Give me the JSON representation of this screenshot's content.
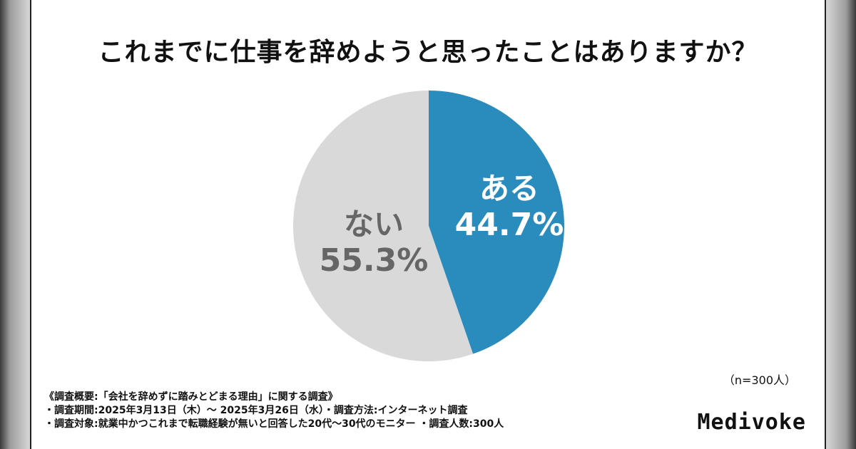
{
  "chart_data": {
    "type": "pie",
    "title": "これまでに仕事を辞めようと思ったことはありますか？",
    "slices": [
      {
        "label": "ある",
        "value": 44.7,
        "value_label": "44.7%",
        "color": "#2a8bbd",
        "text_color": "#ffffff"
      },
      {
        "label": "ない",
        "value": 55.3,
        "value_label": "55.3%",
        "color": "#d9d9d9",
        "text_color": "#666666"
      }
    ],
    "start": "12 o'clock",
    "direction": "clockwise"
  },
  "sample_note": "（n=300人）",
  "survey_notes": [
    "《調査概要:「会社を辞めずに踏みとどまる理由」に関する調査》",
    "・調査期間:2025年3月13日（木）～ 2025年3月26日（水）・調査方法:インターネット調査",
    "・調査対象:就業中かつこれまで転職経験が無いと回答した20代～30代のモニター ・調査人数:300人"
  ],
  "brand": "Medivoke"
}
